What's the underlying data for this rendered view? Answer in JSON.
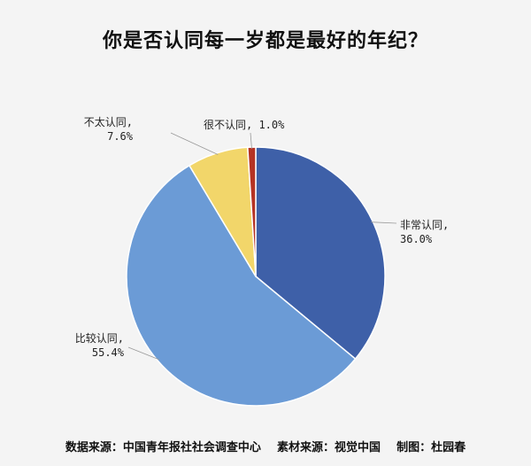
{
  "chart_data": {
    "type": "pie",
    "title": "你是否认同每一岁都是最好的年纪？",
    "slices": [
      {
        "label": "非常认同,",
        "value": 36.0,
        "text": "36.0%",
        "color": "#3e60a8"
      },
      {
        "label": "比较认同,",
        "value": 55.4,
        "text": "55.4%",
        "color": "#6b9bd6"
      },
      {
        "label": "不太认同,",
        "value": 7.6,
        "text": "7.6%",
        "color": "#f2d66a"
      },
      {
        "label": "很不认同,",
        "value": 1.0,
        "text": "1.0%",
        "color": "#b53324"
      }
    ]
  },
  "footer": {
    "text": "数据来源：中国青年报社社会调查中心    素材来源：视觉中国    制图：杜园春"
  }
}
